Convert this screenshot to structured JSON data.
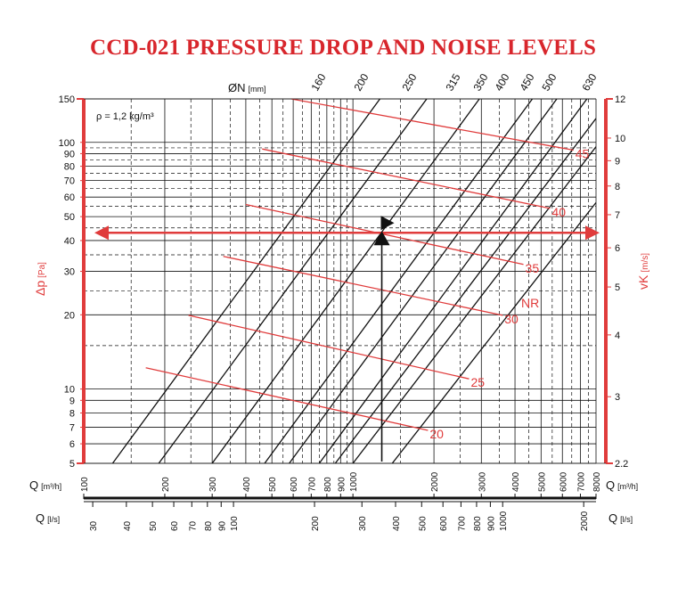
{
  "title": "CCD-021 PRESSURE DROP AND NOISE LEVELS",
  "colors": {
    "red": "#e03c3c",
    "title_red": "#d8262c",
    "black": "#111111"
  },
  "chart_data": {
    "type": "line",
    "density_note": "ρ = 1,2 kg/m³",
    "duct_axis": {
      "label": "ØN",
      "unit": "[mm]",
      "sizes": [
        "160",
        "200",
        "250",
        "315",
        "350",
        "400",
        "450",
        "500",
        "630"
      ]
    },
    "left_axis": {
      "label": "Δp",
      "unit": "[Pa]",
      "scale": "log",
      "range": [
        5,
        150
      ],
      "ticks": [
        150,
        100,
        90,
        80,
        70,
        60,
        50,
        40,
        30,
        20,
        10,
        9,
        8,
        7,
        6,
        5
      ]
    },
    "right_axis": {
      "label": "vK",
      "unit": "[m/s]",
      "scale": "log",
      "range": [
        2.2,
        12
      ],
      "ticks": [
        "12",
        "10",
        "9",
        "8",
        "7",
        "6",
        "5",
        "4",
        "3",
        "2.2"
      ]
    },
    "x_axis_m3h": {
      "label": "Q",
      "unit": "[m³/h]",
      "scale": "log",
      "range": [
        100,
        8000
      ],
      "ticks": [
        "100",
        "200",
        "300",
        "400",
        "500",
        "600",
        "700",
        "800",
        "900",
        "1000",
        "2000",
        "3000",
        "4000",
        "5000",
        "6000",
        "7000",
        "8000"
      ]
    },
    "x_axis_ls": {
      "label": "Q",
      "unit": "[l/s]",
      "ticks": [
        "30",
        "40",
        "50",
        "60",
        "70",
        "80",
        "90",
        "100",
        "200",
        "300",
        "400",
        "500",
        "600",
        "700",
        "800",
        "900",
        "1000",
        "2000"
      ]
    },
    "duct_lines": [
      {
        "name": "160",
        "x": [
          128,
          1260
        ],
        "y": [
          5,
          150
        ]
      },
      {
        "name": "200",
        "x": [
          190,
          1880
        ],
        "y": [
          5,
          150
        ]
      },
      {
        "name": "250",
        "x": [
          300,
          2950
        ],
        "y": [
          5,
          150
        ]
      },
      {
        "name": "315",
        "x": [
          470,
          4640
        ],
        "y": [
          5,
          150
        ]
      },
      {
        "name": "350",
        "x": [
          580,
          5720
        ],
        "y": [
          5,
          150
        ]
      },
      {
        "name": "400",
        "x": [
          750,
          7400
        ],
        "y": [
          5,
          150
        ]
      },
      {
        "name": "450",
        "x": [
          860,
          8000
        ],
        "y": [
          5,
          125
        ]
      },
      {
        "name": "500",
        "x": [
          1000,
          8000
        ],
        "y": [
          5,
          96
        ]
      },
      {
        "name": "630",
        "x": [
          1400,
          8000
        ],
        "y": [
          5,
          57
        ]
      }
    ],
    "nr_label": "NR",
    "nr_lines": [
      {
        "name": "20",
        "x": [
          170,
          1900
        ],
        "y": [
          12.2,
          6.8
        ]
      },
      {
        "name": "25",
        "x": [
          245,
          2700
        ],
        "y": [
          19.9,
          11
        ]
      },
      {
        "name": "30",
        "x": [
          330,
          3600
        ],
        "y": [
          34.5,
          19.9
        ]
      },
      {
        "name": "35",
        "x": [
          400,
          4300
        ],
        "y": [
          56,
          32
        ]
      },
      {
        "name": "40",
        "x": [
          460,
          5400
        ],
        "y": [
          94,
          54
        ]
      },
      {
        "name": "45",
        "x": [
          590,
          6600
        ],
        "y": [
          150,
          93
        ]
      }
    ],
    "operating_point": {
      "q_m3h": 1280,
      "dp_pa": 43
    },
    "grid": true
  }
}
